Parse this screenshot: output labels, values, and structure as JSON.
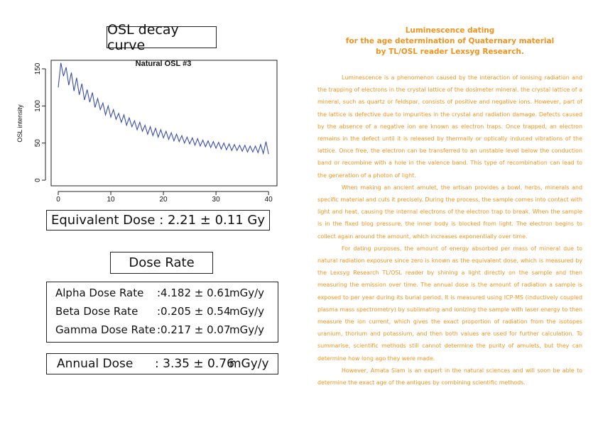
{
  "chart_data": {
    "type": "line",
    "title": "Natural OSL #3",
    "ylabel": "OSL intensity",
    "color": "#3a4fa8",
    "xlim": [
      -1.35,
      41.6
    ],
    "xticks": [
      0,
      10,
      20,
      30,
      40
    ],
    "ylim": [
      -7.6,
      161.5
    ],
    "yticks": [
      0,
      50,
      100,
      150
    ],
    "x": [
      0,
      0.5,
      1,
      1.5,
      2,
      2.5,
      3,
      3.5,
      4,
      4.5,
      5,
      5.5,
      6,
      6.5,
      7,
      7.5,
      8,
      8.5,
      9,
      9.5,
      10,
      10.5,
      11,
      11.5,
      12,
      12.5,
      13,
      13.5,
      14,
      14.5,
      15,
      15.5,
      16,
      16.5,
      17,
      17.5,
      18,
      18.5,
      19,
      19.5,
      20,
      20.5,
      21,
      21.5,
      22,
      22.5,
      23,
      23.5,
      24,
      24.5,
      25,
      25.5,
      26,
      26.5,
      27,
      27.5,
      28,
      28.5,
      29,
      29.5,
      30,
      30.5,
      31,
      31.5,
      32,
      32.5,
      33,
      33.5,
      34,
      34.5,
      35,
      35.5,
      36,
      36.5,
      37,
      37.5,
      38,
      38.5,
      39,
      39.5,
      40
    ],
    "values": [
      125,
      158,
      140,
      152,
      128,
      145,
      120,
      138,
      115,
      130,
      108,
      122,
      105,
      118,
      98,
      110,
      95,
      104,
      88,
      100,
      85,
      95,
      82,
      90,
      78,
      88,
      74,
      84,
      72,
      80,
      68,
      78,
      66,
      74,
      62,
      72,
      60,
      70,
      58,
      68,
      57,
      66,
      55,
      64,
      53,
      62,
      52,
      60,
      50,
      58,
      49,
      57,
      47,
      56,
      46,
      54,
      45,
      53,
      44,
      52,
      43,
      51,
      42,
      50,
      41,
      49,
      40,
      48,
      40,
      47,
      39,
      47,
      38,
      46,
      38,
      46,
      37,
      48,
      36,
      52,
      35
    ]
  },
  "heading": "OSL decay curve",
  "equivalent_dose": {
    "label": "Equivalent Dose",
    "value": ": 2.21 ± 0.11 Gy"
  },
  "dose_rate": {
    "title": "Dose Rate",
    "rows": [
      {
        "label": "Alpha Dose Rate",
        "value": ":4.182 ± 0.61",
        "unit": "mGy/y"
      },
      {
        "label": "Beta Dose Rate",
        "value": ":0.205 ± 0.54",
        "unit": "mGy/y"
      },
      {
        "label": "Gamma Dose Rate",
        "value": ":0.217 ± 0.07",
        "unit": "mGy/y"
      }
    ]
  },
  "annual_dose": {
    "label": "Annual Dose",
    "value": ": 3.35 ± 0.76",
    "unit": "mGy/y"
  },
  "article": {
    "title": [
      "Luminescence dating",
      "for the age determination of Quaternary material",
      "by TL/OSL reader Lexsyg Research."
    ],
    "paragraphs": [
      "Luminescence is a phenomenon caused by the interaction of ionising radiation and the trapping of electrons in the crystal lattice of the dosimeter mineral. the crystal lattice of a mineral, such as quartz or feldspar, consists of positive and negative ions. However, part of the lattice is defective due to impurities in the crystal and radiation damage. Defects caused by the absence of a negative ion are known as electron traps. Once trapped, an electron remains in the defect until it is released by thermally or optically induced vibrations of the lattice. Once free, the electron can be transferred to an unstable level below the conduction band or recombine with a hole in the valence band. This type of recombination can lead to the generation of a photon of light.",
      "When making an ancient amulet, the artisan provides a bowl, herbs, minerals and specific material and cuts it precisely. During the process, the sample comes into contact with light and heat, causing the internal electrons of the electron trap to break. When the sample is in the fixed blog pressure, the inner body is blocked from light. The electron begins to collect again around the amount, which increases exponentially over time.",
      "For dating purposes, the amount of energy absorbed per mass of mineral due to natural radiation exposure since zero is known as the equivalent dose, which is measured by the Lexsyg Research TL/OSL reader by shining a light directly on the sample and then measuring the emission over time. The annual dose is the amount of radiation a sample is exposed to per year during its burial period. It is measured using ICP-MS (inductively coupled plasma mass spectrometry) by sublimating and ionizing the sample with laser energy to then measure the ion current, which gives the exact proportion of radiation from the isotopes uranium, thorium and potassium, and then both values are used for further calculation. To summarise, scientific methods still cannot determine the purity of amulets, but they can determine how long ago they were made.",
      "However, Amata Siam is an expert in the natural sciences and will soon be able to determine the exact age of the antiques by combining scientific methods."
    ]
  }
}
